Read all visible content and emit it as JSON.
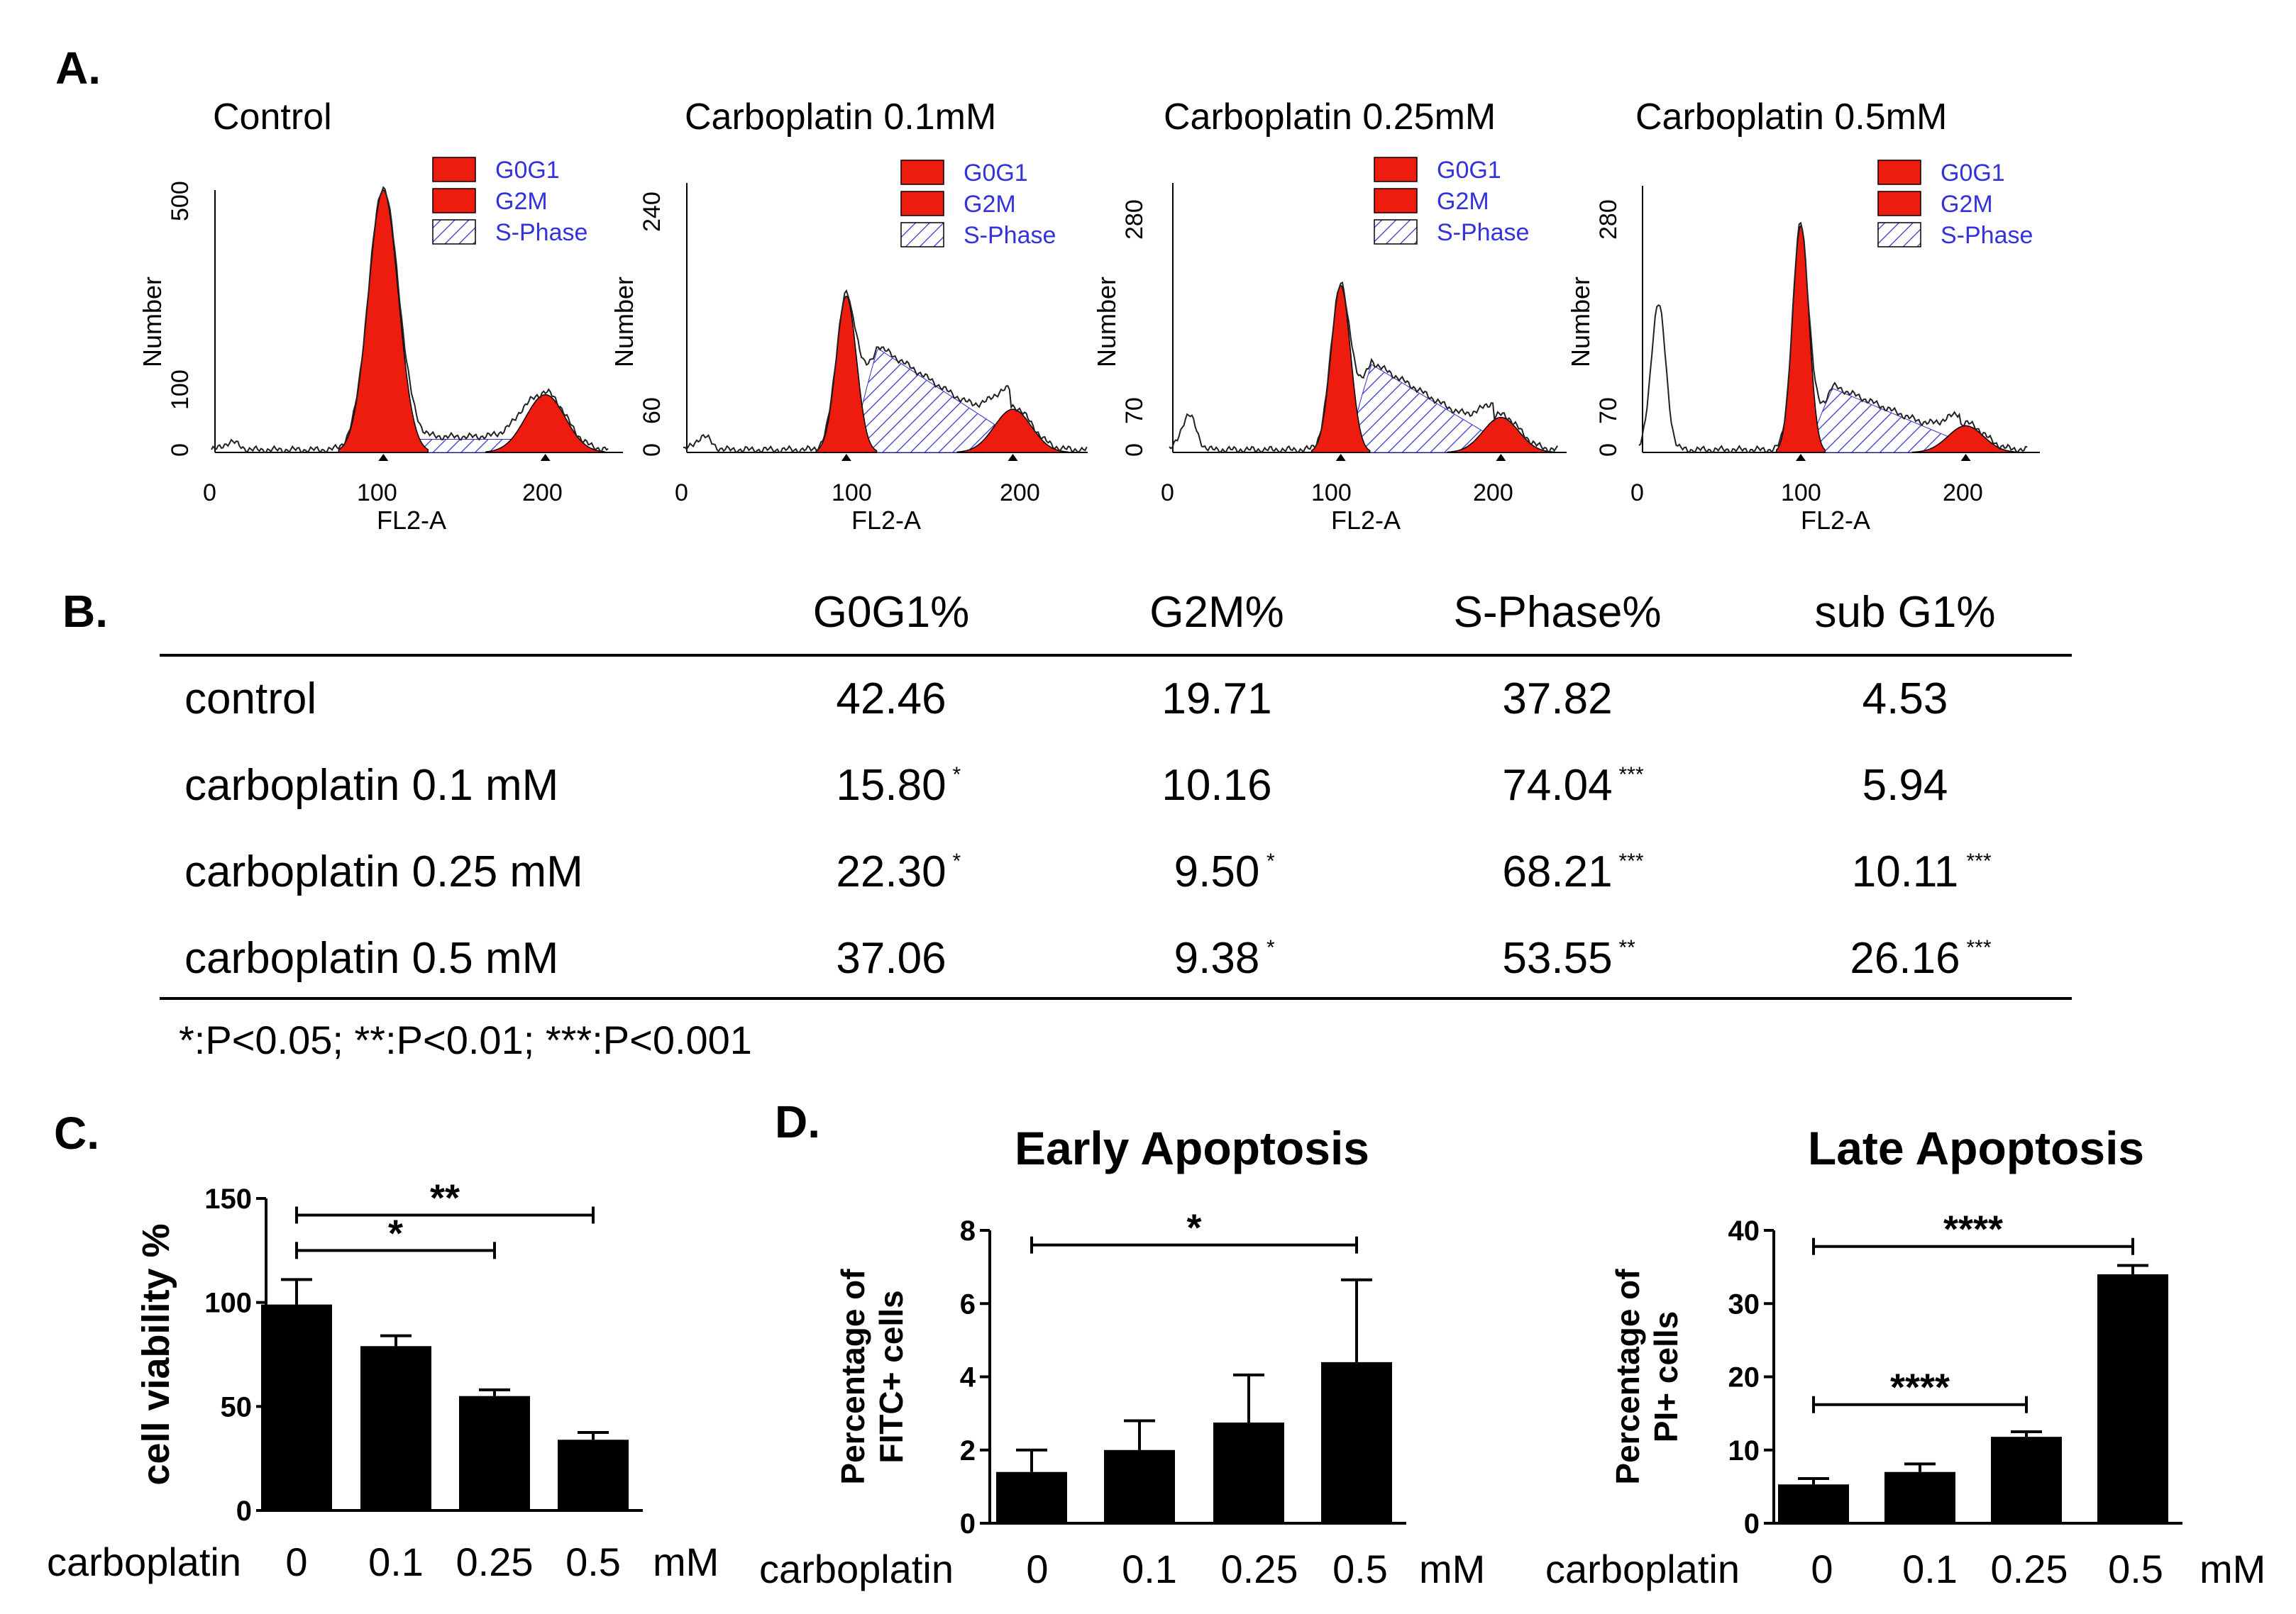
{
  "panels": {
    "a": "A.",
    "b": "B.",
    "c": "C.",
    "d": "D."
  },
  "flow": {
    "xlabel": "FL2-A",
    "ylabel": "Number",
    "legend": [
      "G0G1",
      "G2M",
      "S-Phase"
    ],
    "xticks": [
      "0",
      "100",
      "200"
    ],
    "plots": [
      {
        "title": "Control",
        "yticks": [
          "0",
          "100",
          "500"
        ]
      },
      {
        "title": "Carboplatin 0.1mM",
        "yticks": [
          "0",
          "60",
          "240"
        ]
      },
      {
        "title": "Carboplatin 0.25mM",
        "yticks": [
          "0",
          "70",
          "280"
        ]
      },
      {
        "title": "Carboplatin 0.5mM",
        "yticks": [
          "0",
          "70",
          "280"
        ]
      }
    ]
  },
  "table": {
    "headers": [
      "G0G1%",
      "G2M%",
      "S-Phase%",
      "sub G1%"
    ],
    "rows": [
      {
        "label": "control",
        "cells": [
          [
            "42.46",
            ""
          ],
          [
            "19.71",
            ""
          ],
          [
            "37.82",
            ""
          ],
          [
            "4.53",
            ""
          ]
        ]
      },
      {
        "label": "carboplatin 0.1 mM",
        "cells": [
          [
            "15.80",
            "*"
          ],
          [
            "10.16",
            ""
          ],
          [
            "74.04",
            "***"
          ],
          [
            "5.94",
            ""
          ]
        ]
      },
      {
        "label": "carboplatin 0.25 mM",
        "cells": [
          [
            "22.30",
            "*"
          ],
          [
            "9.50",
            "*"
          ],
          [
            "68.21",
            "***"
          ],
          [
            "10.11",
            "***"
          ]
        ]
      },
      {
        "label": "carboplatin 0.5 mM",
        "cells": [
          [
            "37.06",
            ""
          ],
          [
            "9.38",
            "*"
          ],
          [
            "53.55",
            "**"
          ],
          [
            "26.16",
            "***"
          ]
        ]
      }
    ],
    "footnote": "*:P<0.05; **:P<0.01; ***:P<0.001"
  },
  "chart_data": [
    {
      "type": "bar",
      "title": "",
      "ylabel": "cell viability %",
      "xlabel": "carboplatin",
      "unit": "mM",
      "categories": [
        "0",
        "0.1",
        "0.25",
        "0.5"
      ],
      "values": [
        99,
        79,
        55,
        34
      ],
      "errors": [
        12,
        5,
        3,
        3.5
      ],
      "ylim": [
        0,
        150
      ],
      "yticks": [
        "0",
        "50",
        "100",
        "150"
      ],
      "significance": [
        {
          "from": 0,
          "to": 2,
          "label": "*",
          "y": 125
        },
        {
          "from": 0,
          "to": 3,
          "label": "**",
          "y": 142
        }
      ]
    },
    {
      "type": "bar",
      "title": "Early Apoptosis",
      "ylabel": [
        "Percentage of",
        "FITC+ cells"
      ],
      "xlabel": "carboplatin",
      "unit": "mM",
      "categories": [
        "0",
        "0.1",
        "0.25",
        "0.5"
      ],
      "values": [
        1.4,
        2.0,
        2.75,
        4.4
      ],
      "errors": [
        0.6,
        0.8,
        1.3,
        2.25
      ],
      "ylim": [
        0,
        8
      ],
      "yticks": [
        "0",
        "2",
        "4",
        "6",
        "8"
      ],
      "significance": [
        {
          "from": 0,
          "to": 3,
          "label": "*",
          "y": 7.6
        }
      ]
    },
    {
      "type": "bar",
      "title": "Late Apoptosis",
      "ylabel": [
        "Percentage of",
        "PI+ cells"
      ],
      "xlabel": "carboplatin",
      "unit": "mM",
      "categories": [
        "0",
        "0.1",
        "0.25",
        "0.5"
      ],
      "values": [
        5.3,
        7.0,
        11.8,
        34.0
      ],
      "errors": [
        0.8,
        1.1,
        0.7,
        1.2
      ],
      "ylim": [
        0,
        40
      ],
      "yticks": [
        "0",
        "10",
        "20",
        "30",
        "40"
      ],
      "significance": [
        {
          "from": 0,
          "to": 3,
          "label": "****",
          "y": 37.8
        },
        {
          "from": 0,
          "to": 2,
          "label": "****",
          "y": 16.2
        }
      ]
    }
  ],
  "colors": {
    "bar": "#000000",
    "peak": "#ee1c0f",
    "legend_text": "#3333dd",
    "hatch": "#3333cc"
  }
}
